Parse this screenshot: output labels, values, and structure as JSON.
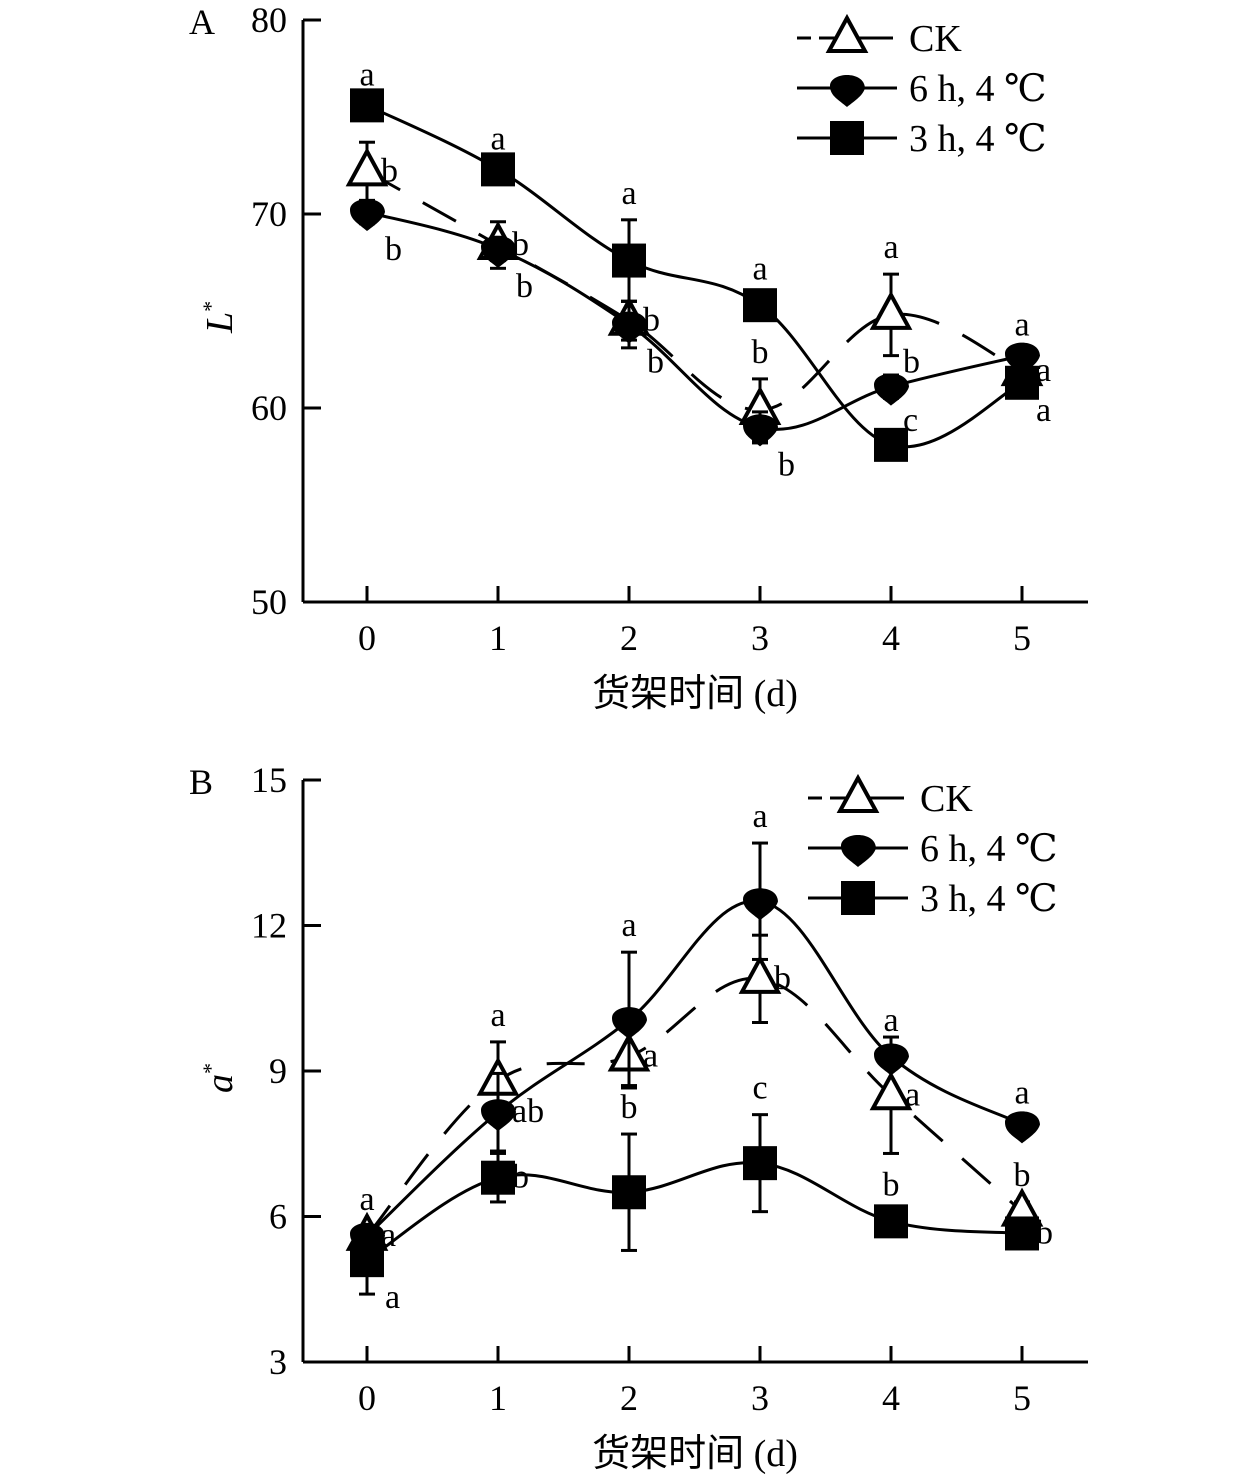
{
  "chart_data": [
    {
      "type": "line",
      "panel_label": "A",
      "xlabel": "货架时间 (d)",
      "ylabel": "L",
      "ylabel_sup": "*",
      "x": [
        0,
        1,
        2,
        3,
        4,
        5
      ],
      "xticks": [
        "0",
        "1",
        "2",
        "3",
        "4",
        "5"
      ],
      "ylim": [
        50,
        80
      ],
      "yticks": [
        "50",
        "60",
        "70",
        "80"
      ],
      "ytick_values": [
        50,
        60,
        70,
        80
      ],
      "grid": false,
      "legend_position": "top-right",
      "series": [
        {
          "name": "CK",
          "marker": "open-triangle",
          "dashed": true,
          "values": [
            72.2,
            68.4,
            64.5,
            59.9,
            64.8,
            61.9
          ],
          "err": [
            1.5,
            1.2,
            1.0,
            1.6,
            2.1,
            0.3
          ],
          "letters": [
            "b",
            "b",
            "b",
            "b",
            "a",
            "a"
          ],
          "letter_pos": [
            "right",
            "right",
            "right",
            "above",
            "above",
            "right"
          ]
        },
        {
          "name": "6 h, 4 ℃",
          "marker": "filled-circle",
          "dashed": false,
          "values": [
            70.1,
            68.2,
            64.3,
            59.0,
            61.1,
            62.7
          ],
          "err": [
            0.6,
            0.6,
            1.2,
            0.8,
            0.6,
            0.2
          ],
          "letters": [
            "b",
            "b",
            "b",
            "b",
            "b",
            "a"
          ],
          "letter_pos": [
            "below-right",
            "below-right",
            "below-right",
            "below-right",
            "above-right",
            "above"
          ]
        },
        {
          "name": "3 h, 4 ℃",
          "marker": "filled-square",
          "dashed": false,
          "values": [
            75.6,
            72.3,
            67.6,
            65.3,
            58.1,
            61.3
          ],
          "err": [
            0.2,
            0.2,
            2.1,
            0.5,
            0.6,
            0.2
          ],
          "letters": [
            "a",
            "a",
            "a",
            "a",
            "c",
            "a"
          ],
          "letter_pos": [
            "above",
            "above",
            "above",
            "above",
            "above-right",
            "right"
          ]
        }
      ]
    },
    {
      "type": "line",
      "panel_label": "B",
      "xlabel": "货架时间 (d)",
      "ylabel": "a",
      "ylabel_sup": "*",
      "x": [
        0,
        1,
        2,
        3,
        4,
        5
      ],
      "xticks": [
        "0",
        "1",
        "2",
        "3",
        "4",
        "5"
      ],
      "ylim": [
        3,
        15
      ],
      "yticks": [
        "3",
        "6",
        "9",
        "12",
        "15"
      ],
      "ytick_values": [
        3,
        6,
        9,
        12,
        15
      ],
      "grid": false,
      "legend_position": "top-right",
      "series": [
        {
          "name": "CK",
          "marker": "open-triangle",
          "dashed": true,
          "values": [
            5.6,
            8.8,
            9.3,
            10.9,
            8.5,
            6.1
          ],
          "err": [
            0.2,
            0.8,
            0.6,
            0.9,
            1.2,
            0.2
          ],
          "letters": [
            "a",
            "a",
            "a",
            "b",
            "a",
            "b"
          ],
          "letter_pos": [
            "right",
            "above",
            "right",
            "right",
            "right",
            "above"
          ]
        },
        {
          "name": "6 h, 4 ℃",
          "marker": "filled-circle",
          "dashed": false,
          "values": [
            5.6,
            8.15,
            10.05,
            12.5,
            9.3,
            7.9
          ],
          "err": [
            0.2,
            0.8,
            1.4,
            1.2,
            0.2,
            0.1
          ],
          "letters": [
            "a",
            "ab",
            "a",
            "a",
            "a",
            "a"
          ],
          "letter_pos": [
            "above",
            "right",
            "above",
            "above",
            "above",
            "above"
          ]
        },
        {
          "name": "3 h, 4 ℃",
          "marker": "filled-square",
          "dashed": false,
          "values": [
            5.1,
            6.8,
            6.5,
            7.1,
            5.9,
            5.65
          ],
          "err": [
            0.7,
            0.5,
            1.2,
            1.0,
            0.2,
            0.1
          ],
          "letters": [
            "a",
            "b",
            "b",
            "c",
            "b",
            "b"
          ],
          "letter_pos": [
            "below-right",
            "right",
            "above",
            "above",
            "above",
            "right"
          ]
        }
      ]
    }
  ]
}
